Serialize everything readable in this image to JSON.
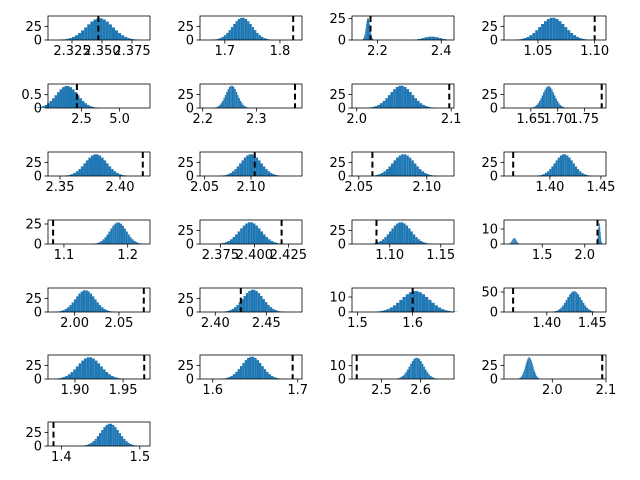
{
  "chart_data": [
    {
      "type": "histogram",
      "xlim": [
        2.305,
        2.39
      ],
      "ylim": [
        0,
        44
      ],
      "xticks": [
        2.325,
        2.35,
        2.375
      ],
      "xticklabels": [
        "2.325",
        "2.350",
        "2.375"
      ],
      "yticks": [
        0,
        25
      ],
      "mean": 2.348,
      "sd": 0.011,
      "peak": 40,
      "vline": 2.347
    },
    {
      "type": "histogram",
      "xlim": [
        1.655,
        1.84
      ],
      "ylim": [
        0,
        44
      ],
      "xticks": [
        1.7,
        1.8
      ],
      "xticklabels": [
        "1.7",
        "1.8"
      ],
      "yticks": [
        0,
        25
      ],
      "mean": 1.732,
      "sd": 0.018,
      "peak": 41,
      "vline": 1.824
    },
    {
      "type": "histogram",
      "xlim": [
        2.12,
        2.44
      ],
      "ylim": [
        0,
        28
      ],
      "xticks": [
        2.2,
        2.4
      ],
      "xticklabels": [
        "2.2",
        "2.4"
      ],
      "yticks": [
        0,
        25
      ],
      "mean": 2.17,
      "sd": 0.006,
      "peak": 26,
      "mean2": 2.37,
      "sd2": 0.025,
      "peak2": 4,
      "vline": 2.178
    },
    {
      "type": "histogram",
      "xlim": [
        1.02,
        1.11
      ],
      "ylim": [
        0,
        44
      ],
      "xticks": [
        1.05,
        1.1
      ],
      "xticklabels": [
        "1.05",
        "1.10"
      ],
      "yticks": [
        0,
        25
      ],
      "mean": 1.063,
      "sd": 0.011,
      "peak": 41,
      "vline": 1.1
    },
    {
      "type": "histogram",
      "xlim": [
        0.3,
        7.0
      ],
      "ylim": [
        0,
        0.9
      ],
      "xticks": [
        2.5,
        5.0
      ],
      "xticklabels": [
        "2.5",
        "5.0"
      ],
      "yticks": [
        0,
        0.5
      ],
      "yticklabels": [
        "0",
        "0.5"
      ],
      "mean": 1.55,
      "sd": 0.7,
      "peak": 0.83,
      "vline": 2.2
    },
    {
      "type": "histogram",
      "xlim": [
        2.195,
        2.385
      ],
      "ylim": [
        0,
        44
      ],
      "xticks": [
        2.2,
        2.3
      ],
      "xticklabels": [
        "2.2",
        "2.3"
      ],
      "yticks": [
        0,
        25
      ],
      "mean": 2.254,
      "sd": 0.011,
      "peak": 41,
      "vline": 2.372
    },
    {
      "type": "histogram",
      "xlim": [
        1.995,
        2.103
      ],
      "ylim": [
        0,
        44
      ],
      "xticks": [
        2.0,
        2.1
      ],
      "xticklabels": [
        "2.0",
        "2.1"
      ],
      "yticks": [
        0,
        25
      ],
      "mean": 2.047,
      "sd": 0.012,
      "peak": 41,
      "vline": 2.098
    },
    {
      "type": "histogram",
      "xlim": [
        1.6,
        1.79
      ],
      "ylim": [
        0,
        44
      ],
      "xticks": [
        1.65,
        1.7,
        1.75
      ],
      "xticklabels": [
        "1.65",
        "1.70",
        "1.75"
      ],
      "yticks": [
        0,
        25
      ],
      "mean": 1.683,
      "sd": 0.011,
      "peak": 40,
      "vline": 1.782
    },
    {
      "type": "histogram",
      "xlim": [
        2.34,
        2.425
      ],
      "ylim": [
        0,
        44
      ],
      "xticks": [
        2.35,
        2.4
      ],
      "xticklabels": [
        "2.35",
        "2.40"
      ],
      "yticks": [
        0,
        25
      ],
      "mean": 2.38,
      "sd": 0.009,
      "peak": 40,
      "vline": 2.419
    },
    {
      "type": "histogram",
      "xlim": [
        2.045,
        2.155
      ],
      "ylim": [
        0,
        44
      ],
      "xticks": [
        2.05,
        2.1
      ],
      "xticklabels": [
        "2.05",
        "2.10"
      ],
      "yticks": [
        0,
        25
      ],
      "mean": 2.1,
      "sd": 0.011,
      "peak": 40,
      "vline": 2.104
    },
    {
      "type": "histogram",
      "xlim": [
        2.045,
        2.12
      ],
      "ylim": [
        0,
        44
      ],
      "xticks": [
        2.05,
        2.1
      ],
      "xticklabels": [
        "2.05",
        "2.10"
      ],
      "yticks": [
        0,
        25
      ],
      "mean": 2.083,
      "sd": 0.008,
      "peak": 40,
      "vline": 2.06
    },
    {
      "type": "histogram",
      "xlim": [
        1.355,
        1.455
      ],
      "ylim": [
        0,
        44
      ],
      "xticks": [
        1.4,
        1.45
      ],
      "xticklabels": [
        "1.40",
        "1.45"
      ],
      "yticks": [
        0,
        25
      ],
      "mean": 1.414,
      "sd": 0.009,
      "peak": 40,
      "vline": 1.364
    },
    {
      "type": "histogram",
      "xlim": [
        1.075,
        1.235
      ],
      "ylim": [
        0,
        30
      ],
      "xticks": [
        1.1,
        1.2
      ],
      "xticklabels": [
        "1.1",
        "1.2"
      ],
      "yticks": [
        0,
        25
      ],
      "mean": 1.185,
      "sd": 0.013,
      "peak": 27,
      "vline": 1.083
    },
    {
      "type": "histogram",
      "xlim": [
        2.36,
        2.435
      ],
      "ylim": [
        0,
        44
      ],
      "xticks": [
        2.375,
        2.4,
        2.425
      ],
      "xticklabels": [
        "2.375",
        "2.400",
        "2.425"
      ],
      "yticks": [
        0,
        25
      ],
      "mean": 2.397,
      "sd": 0.008,
      "peak": 40,
      "vline": 2.42
    },
    {
      "type": "histogram",
      "xlim": [
        1.063,
        1.163
      ],
      "ylim": [
        0,
        44
      ],
      "xticks": [
        1.1,
        1.15
      ],
      "xticklabels": [
        "1.10",
        "1.15"
      ],
      "yticks": [
        0,
        25
      ],
      "mean": 1.111,
      "sd": 0.01,
      "peak": 40,
      "vline": 1.087
    },
    {
      "type": "histogram",
      "xlim": [
        1.05,
        2.25
      ],
      "ylim": [
        0,
        16
      ],
      "xticks": [
        1.5,
        2.0
      ],
      "xticklabels": [
        "1.5",
        "2.0"
      ],
      "yticks": [
        0,
        10
      ],
      "mean": 1.17,
      "sd": 0.025,
      "peak": 4,
      "mean2": 2.17,
      "sd2": 0.012,
      "peak2": 14,
      "vline": 2.15
    },
    {
      "type": "histogram",
      "xlim": [
        1.97,
        2.085
      ],
      "ylim": [
        0,
        44
      ],
      "xticks": [
        2.0,
        2.05
      ],
      "xticklabels": [
        "2.00",
        "2.05"
      ],
      "yticks": [
        0,
        25
      ],
      "mean": 2.012,
      "sd": 0.011,
      "peak": 40,
      "vline": 2.078
    },
    {
      "type": "histogram",
      "xlim": [
        2.385,
        2.485
      ],
      "ylim": [
        0,
        44
      ],
      "xticks": [
        2.4,
        2.45
      ],
      "xticklabels": [
        "2.40",
        "2.45"
      ],
      "yticks": [
        0,
        25
      ],
      "mean": 2.437,
      "sd": 0.01,
      "peak": 41,
      "vline": 2.425
    },
    {
      "type": "histogram",
      "xlim": [
        1.49,
        1.675
      ],
      "ylim": [
        0,
        16
      ],
      "xticks": [
        1.5,
        1.6
      ],
      "xticklabels": [
        "1.5",
        "1.6"
      ],
      "yticks": [
        0,
        10
      ],
      "mean": 1.605,
      "sd": 0.025,
      "peak": 14,
      "vline": 1.6
    },
    {
      "type": "histogram",
      "xlim": [
        1.353,
        1.465
      ],
      "ylim": [
        0,
        60
      ],
      "xticks": [
        1.4,
        1.45
      ],
      "xticklabels": [
        "1.40",
        "1.45"
      ],
      "yticks": [
        0,
        50
      ],
      "mean": 1.43,
      "sd": 0.008,
      "peak": 52,
      "vline": 1.363
    },
    {
      "type": "histogram",
      "xlim": [
        1.872,
        1.978
      ],
      "ylim": [
        0,
        44
      ],
      "xticks": [
        1.9,
        1.95
      ],
      "xticklabels": [
        "1.90",
        "1.95"
      ],
      "yticks": [
        0,
        25
      ],
      "mean": 1.915,
      "sd": 0.012,
      "peak": 40,
      "vline": 1.972
    },
    {
      "type": "histogram",
      "xlim": [
        1.585,
        1.705
      ],
      "ylim": [
        0,
        44
      ],
      "xticks": [
        1.6,
        1.7
      ],
      "xticklabels": [
        "1.6",
        "1.7"
      ],
      "yticks": [
        0,
        25
      ],
      "mean": 1.646,
      "sd": 0.012,
      "peak": 41,
      "vline": 1.694
    },
    {
      "type": "histogram",
      "xlim": [
        2.425,
        2.685
      ],
      "ylim": [
        0,
        18
      ],
      "xticks": [
        2.5,
        2.6
      ],
      "xticklabels": [
        "2.5",
        "2.6"
      ],
      "yticks": [
        0,
        10
      ],
      "mean": 2.59,
      "sd": 0.018,
      "peak": 16,
      "vline": 2.437
    },
    {
      "type": "histogram",
      "xlim": [
        1.91,
        2.1
      ],
      "ylim": [
        0,
        44
      ],
      "xticks": [
        2.0,
        2.1
      ],
      "xticklabels": [
        "2.0",
        "2.1"
      ],
      "yticks": [
        0,
        25
      ],
      "mean": 1.957,
      "sd": 0.007,
      "peak": 40,
      "vline": 2.093
    },
    {
      "type": "histogram",
      "xlim": [
        1.383,
        1.513
      ],
      "ylim": [
        0,
        44
      ],
      "xticks": [
        1.4,
        1.5
      ],
      "xticklabels": [
        "1.4",
        "1.5"
      ],
      "yticks": [
        0,
        25
      ],
      "mean": 1.462,
      "sd": 0.012,
      "peak": 41,
      "vline": 1.39
    }
  ]
}
